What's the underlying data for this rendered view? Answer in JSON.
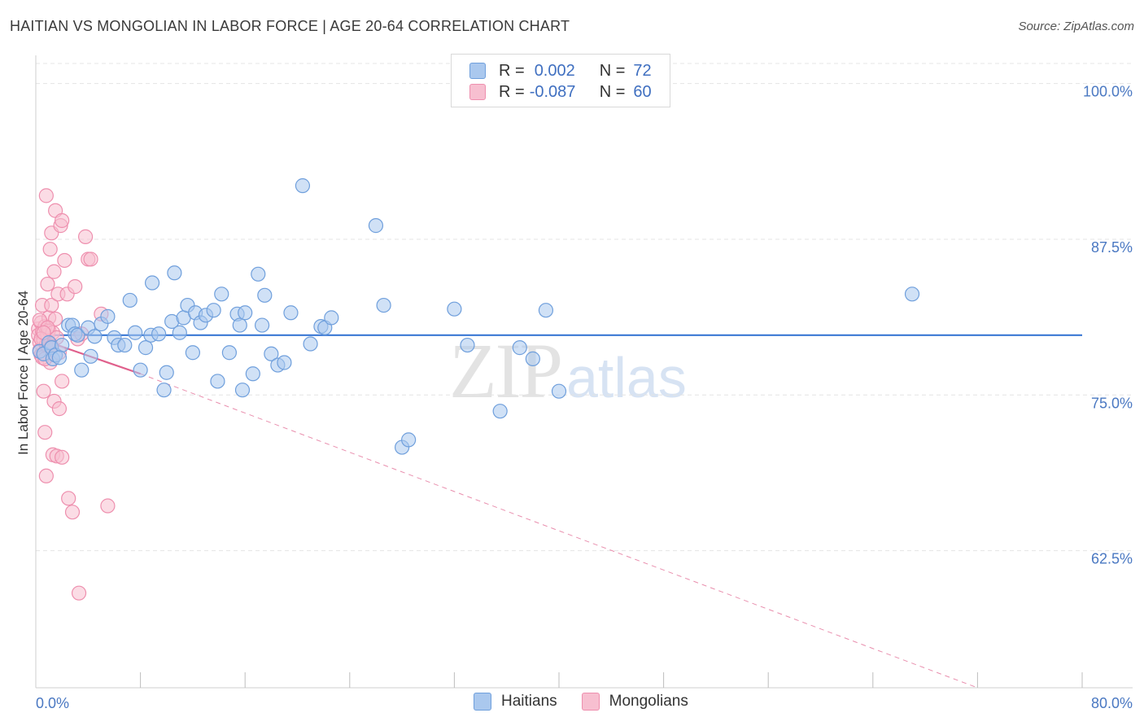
{
  "title": "HAITIAN VS MONGOLIAN IN LABOR FORCE | AGE 20-64 CORRELATION CHART",
  "source": "Source: ZipAtlas.com",
  "watermark": {
    "zip": "ZIP",
    "atlas": "atlas"
  },
  "legend": {
    "haitians": {
      "r_label": "R =",
      "r_value": "0.002",
      "n_label": "N =",
      "n_value": "72"
    },
    "mongolians": {
      "r_label": "R =",
      "r_value": "-0.087",
      "n_label": "N =",
      "n_value": "60"
    }
  },
  "bottom_legend": {
    "haitians": "Haitians",
    "mongolians": "Mongolians"
  },
  "colors": {
    "haitian_fill": "#aac8ee",
    "haitian_stroke": "#6f9fdc",
    "haitian_line": "#3a78d4",
    "mongolian_fill": "#f7bfd0",
    "mongolian_stroke": "#ee8fae",
    "mongolian_line": "#e0608c",
    "grid": "#e4e4e4",
    "axis_text": "#4a78c2"
  },
  "chart_data": {
    "type": "scatter",
    "title": "HAITIAN VS MONGOLIAN IN LABOR FORCE | AGE 20-64 CORRELATION CHART",
    "xlabel": "",
    "ylabel": "In Labor Force | Age 20-64",
    "xlim": [
      0,
      80
    ],
    "ylim": [
      51.5,
      102
    ],
    "x_tick_labels": {
      "left": "0.0%",
      "right": "80.0%"
    },
    "y_ticks": [
      {
        "value": 100,
        "label": "100.0%"
      },
      {
        "value": 87.5,
        "label": "87.5%"
      },
      {
        "value": 75,
        "label": "75.0%"
      },
      {
        "value": 62.5,
        "label": "62.5%"
      }
    ],
    "series": [
      {
        "name": "Haitians",
        "trend": {
          "x": [
            0,
            80
          ],
          "y": [
            79.8,
            79.8
          ]
        },
        "points": [
          [
            0.3,
            78.5
          ],
          [
            0.6,
            78.3
          ],
          [
            1.0,
            79.2
          ],
          [
            1.2,
            78.8
          ],
          [
            1.3,
            77.9
          ],
          [
            1.5,
            78.2
          ],
          [
            2.0,
            79.0
          ],
          [
            2.5,
            80.6
          ],
          [
            2.8,
            80.6
          ],
          [
            3.0,
            79.9
          ],
          [
            3.2,
            79.8
          ],
          [
            3.5,
            77.0
          ],
          [
            4.0,
            80.4
          ],
          [
            4.2,
            78.1
          ],
          [
            4.5,
            79.7
          ],
          [
            5.0,
            80.7
          ],
          [
            5.5,
            81.3
          ],
          [
            6.0,
            79.6
          ],
          [
            6.3,
            79.0
          ],
          [
            6.8,
            79.0
          ],
          [
            7.2,
            82.6
          ],
          [
            7.6,
            80.0
          ],
          [
            8.0,
            77.0
          ],
          [
            8.4,
            78.8
          ],
          [
            8.8,
            79.8
          ],
          [
            8.9,
            84.0
          ],
          [
            9.4,
            79.9
          ],
          [
            9.8,
            75.4
          ],
          [
            10.0,
            76.8
          ],
          [
            10.4,
            80.9
          ],
          [
            10.6,
            84.8
          ],
          [
            11.0,
            80.0
          ],
          [
            11.3,
            81.2
          ],
          [
            11.6,
            82.2
          ],
          [
            12.0,
            78.4
          ],
          [
            12.2,
            81.6
          ],
          [
            12.6,
            80.8
          ],
          [
            13.0,
            81.4
          ],
          [
            13.6,
            81.8
          ],
          [
            13.9,
            76.1
          ],
          [
            14.2,
            83.1
          ],
          [
            14.8,
            78.4
          ],
          [
            15.4,
            81.5
          ],
          [
            15.6,
            80.6
          ],
          [
            15.8,
            75.4
          ],
          [
            16.0,
            81.6
          ],
          [
            16.6,
            76.7
          ],
          [
            17.0,
            84.7
          ],
          [
            17.3,
            80.6
          ],
          [
            17.5,
            83.0
          ],
          [
            18.0,
            78.3
          ],
          [
            18.5,
            77.4
          ],
          [
            19.0,
            77.6
          ],
          [
            19.5,
            81.6
          ],
          [
            20.4,
            91.8
          ],
          [
            21.0,
            79.1
          ],
          [
            21.8,
            80.5
          ],
          [
            22.1,
            80.4
          ],
          [
            22.6,
            81.2
          ],
          [
            26.0,
            88.6
          ],
          [
            26.6,
            82.2
          ],
          [
            28.0,
            70.8
          ],
          [
            28.5,
            71.4
          ],
          [
            32.0,
            81.9
          ],
          [
            33.0,
            79.0
          ],
          [
            35.5,
            73.7
          ],
          [
            37.0,
            78.8
          ],
          [
            38.0,
            77.9
          ],
          [
            39.0,
            81.8
          ],
          [
            40.0,
            75.3
          ],
          [
            67.0,
            83.1
          ],
          [
            1.8,
            78.0
          ]
        ]
      },
      {
        "name": "Mongolians",
        "trend": {
          "x": [
            0,
            8.0
          ],
          "y": [
            79.6,
            76.7
          ]
        },
        "trend_extended": {
          "x": [
            8.0,
            72.0
          ],
          "y": [
            76.7,
            51.5
          ]
        },
        "points": [
          [
            0.2,
            80.3
          ],
          [
            0.2,
            79.8
          ],
          [
            0.3,
            79.2
          ],
          [
            0.3,
            78.6
          ],
          [
            0.4,
            80.8
          ],
          [
            0.4,
            78.2
          ],
          [
            0.5,
            80.1
          ],
          [
            0.5,
            82.2
          ],
          [
            0.6,
            79.4
          ],
          [
            0.6,
            75.3
          ],
          [
            0.7,
            80.5
          ],
          [
            0.7,
            72.0
          ],
          [
            0.8,
            79.0
          ],
          [
            0.8,
            68.5
          ],
          [
            0.8,
            91.0
          ],
          [
            0.9,
            79.8
          ],
          [
            0.9,
            83.9
          ],
          [
            1.0,
            80.2
          ],
          [
            1.0,
            81.2
          ],
          [
            1.0,
            78.8
          ],
          [
            1.1,
            77.6
          ],
          [
            1.1,
            86.7
          ],
          [
            1.2,
            88.0
          ],
          [
            1.2,
            82.2
          ],
          [
            1.3,
            80.0
          ],
          [
            1.3,
            70.2
          ],
          [
            1.4,
            84.9
          ],
          [
            1.4,
            74.5
          ],
          [
            1.5,
            89.8
          ],
          [
            1.5,
            81.1
          ],
          [
            1.6,
            79.6
          ],
          [
            1.6,
            70.1
          ],
          [
            1.7,
            83.1
          ],
          [
            1.8,
            78.4
          ],
          [
            1.8,
            73.9
          ],
          [
            1.9,
            88.6
          ],
          [
            2.0,
            89.0
          ],
          [
            2.0,
            76.1
          ],
          [
            2.0,
            70.0
          ],
          [
            2.2,
            85.8
          ],
          [
            2.4,
            83.1
          ],
          [
            2.5,
            66.7
          ],
          [
            2.8,
            65.6
          ],
          [
            3.0,
            83.7
          ],
          [
            3.2,
            79.5
          ],
          [
            3.3,
            59.1
          ],
          [
            3.5,
            79.9
          ],
          [
            3.8,
            87.7
          ],
          [
            4.0,
            85.9
          ],
          [
            4.2,
            85.9
          ],
          [
            5.0,
            81.5
          ],
          [
            5.5,
            66.1
          ],
          [
            0.3,
            81.0
          ],
          [
            0.5,
            78.0
          ],
          [
            0.9,
            80.4
          ],
          [
            1.1,
            79.1
          ],
          [
            0.4,
            79.5
          ],
          [
            0.6,
            80.0
          ],
          [
            1.2,
            78.9
          ],
          [
            0.7,
            77.9
          ]
        ]
      }
    ]
  }
}
